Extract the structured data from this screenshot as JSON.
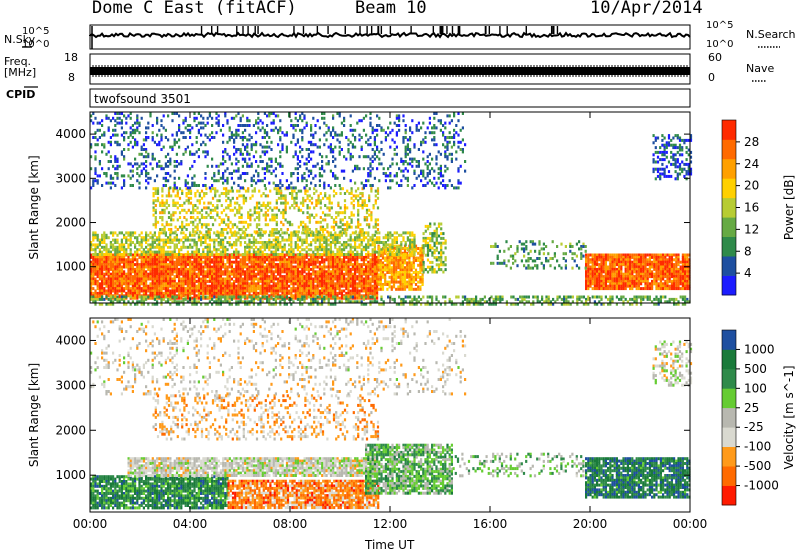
{
  "header": {
    "station": "Dome C East (fitACF)",
    "beam": "Beam 10",
    "date": "10/Apr/2014"
  },
  "labels": {
    "nsky": "N.Sky",
    "nsearch": "N.Search",
    "freq": "Freq.",
    "freq_unit": "[MHz]",
    "nave": "Nave",
    "cpid": "CPID",
    "cpid_value": "twofsound 3501",
    "time_axis": "Time UT"
  },
  "strip_ticks": {
    "noise_left": [
      "10^5",
      "10^0"
    ],
    "noise_right": [
      "10^5",
      "10^0"
    ],
    "freq_left": [
      "18",
      "8"
    ],
    "nave_right": [
      "60",
      "0"
    ]
  },
  "colors": {
    "power_scale": [
      "#1c1cff",
      "#1e4fa0",
      "#2f8a4a",
      "#66aa44",
      "#b7cc33",
      "#ffd000",
      "#ffa000",
      "#ff6a00",
      "#ff2a00"
    ],
    "velocity_scale": [
      "#ff1a00",
      "#ff6a00",
      "#ff9a1a",
      "#d9d9d0",
      "#b8b8b0",
      "#66cc33",
      "#2f8a4a",
      "#1a7a3a",
      "#1e4fa0"
    ]
  },
  "chart_data": [
    {
      "type": "heatmap",
      "title": "",
      "ylabel": "Slant Range [km]",
      "xlabel": "",
      "x_tick_labels": [
        "00:00",
        "04:00",
        "08:00",
        "12:00",
        "16:00",
        "20:00",
        "00:00"
      ],
      "xlim": [
        0,
        24
      ],
      "ylim": [
        180,
        4500
      ],
      "y_ticks": [
        1000,
        2000,
        3000,
        4000
      ],
      "colorbar": {
        "label": "Power [dB]",
        "ticks": [
          4,
          8,
          12,
          16,
          20,
          24,
          28
        ],
        "range": [
          0,
          32
        ]
      },
      "regions": [
        {
          "t0": 0.0,
          "t1": 11.5,
          "r0": 300,
          "r1": 1300,
          "level": 0.9,
          "density": 0.92
        },
        {
          "t0": 11.5,
          "t1": 13.3,
          "r0": 500,
          "r1": 1500,
          "level": 0.75,
          "density": 0.8
        },
        {
          "t0": 13.3,
          "t1": 14.2,
          "r0": 900,
          "r1": 2000,
          "level": 0.45,
          "density": 0.5
        },
        {
          "t0": 19.8,
          "t1": 24.0,
          "r0": 500,
          "r1": 1300,
          "level": 0.9,
          "density": 0.92
        },
        {
          "t0": 16.0,
          "t1": 19.8,
          "r0": 1000,
          "r1": 1600,
          "level": 0.3,
          "density": 0.25
        },
        {
          "t0": 0.0,
          "t1": 13.0,
          "r0": 1300,
          "r1": 1800,
          "level": 0.5,
          "density": 0.6
        },
        {
          "t0": 2.5,
          "t1": 11.5,
          "r0": 1800,
          "r1": 2800,
          "level": 0.55,
          "density": 0.35
        },
        {
          "t0": 0.0,
          "t1": 15.0,
          "r0": 2800,
          "r1": 4500,
          "level": 0.15,
          "density": 0.22
        },
        {
          "t0": 0.0,
          "t1": 24.0,
          "r0": 180,
          "r1": 350,
          "level": 0.35,
          "density": 0.5
        },
        {
          "t0": 22.5,
          "t1": 24.0,
          "r0": 3000,
          "r1": 4000,
          "level": 0.12,
          "density": 0.4
        }
      ]
    },
    {
      "type": "heatmap",
      "title": "",
      "ylabel": "Slant Range [km]",
      "xlabel": "Time UT",
      "x_tick_labels": [
        "00:00",
        "04:00",
        "08:00",
        "12:00",
        "16:00",
        "20:00",
        "00:00"
      ],
      "xlim": [
        0,
        24
      ],
      "ylim": [
        180,
        4500
      ],
      "y_ticks": [
        1000,
        2000,
        3000,
        4000
      ],
      "colorbar": {
        "label": "Velocity [m s^-1]",
        "ticks": [
          1000,
          500,
          100,
          25,
          -25,
          -100,
          -500,
          -1000
        ]
      },
      "regions": [
        {
          "t0": 0.0,
          "t1": 5.5,
          "r0": 300,
          "r1": 1000,
          "level": 0.8,
          "density": 0.85
        },
        {
          "t0": 5.5,
          "t1": 11.5,
          "r0": 300,
          "r1": 900,
          "level": 0.2,
          "density": 0.85
        },
        {
          "t0": 1.5,
          "t1": 11.5,
          "r0": 1000,
          "r1": 1400,
          "level": 0.45,
          "density": 0.85
        },
        {
          "t0": 11.0,
          "t1": 14.5,
          "r0": 600,
          "r1": 1700,
          "level": 0.65,
          "density": 0.75
        },
        {
          "t0": 14.5,
          "t1": 19.8,
          "r0": 1000,
          "r1": 1500,
          "level": 0.6,
          "density": 0.25
        },
        {
          "t0": 19.8,
          "t1": 24.0,
          "r0": 500,
          "r1": 1400,
          "level": 0.85,
          "density": 0.85
        },
        {
          "t0": 2.5,
          "t1": 11.5,
          "r0": 1800,
          "r1": 2800,
          "level": 0.3,
          "density": 0.25
        },
        {
          "t0": 0.0,
          "t1": 15.0,
          "r0": 2800,
          "r1": 4500,
          "level": 0.4,
          "density": 0.15
        },
        {
          "t0": 22.5,
          "t1": 24.0,
          "r0": 3000,
          "r1": 4000,
          "level": 0.45,
          "density": 0.35
        }
      ]
    }
  ]
}
